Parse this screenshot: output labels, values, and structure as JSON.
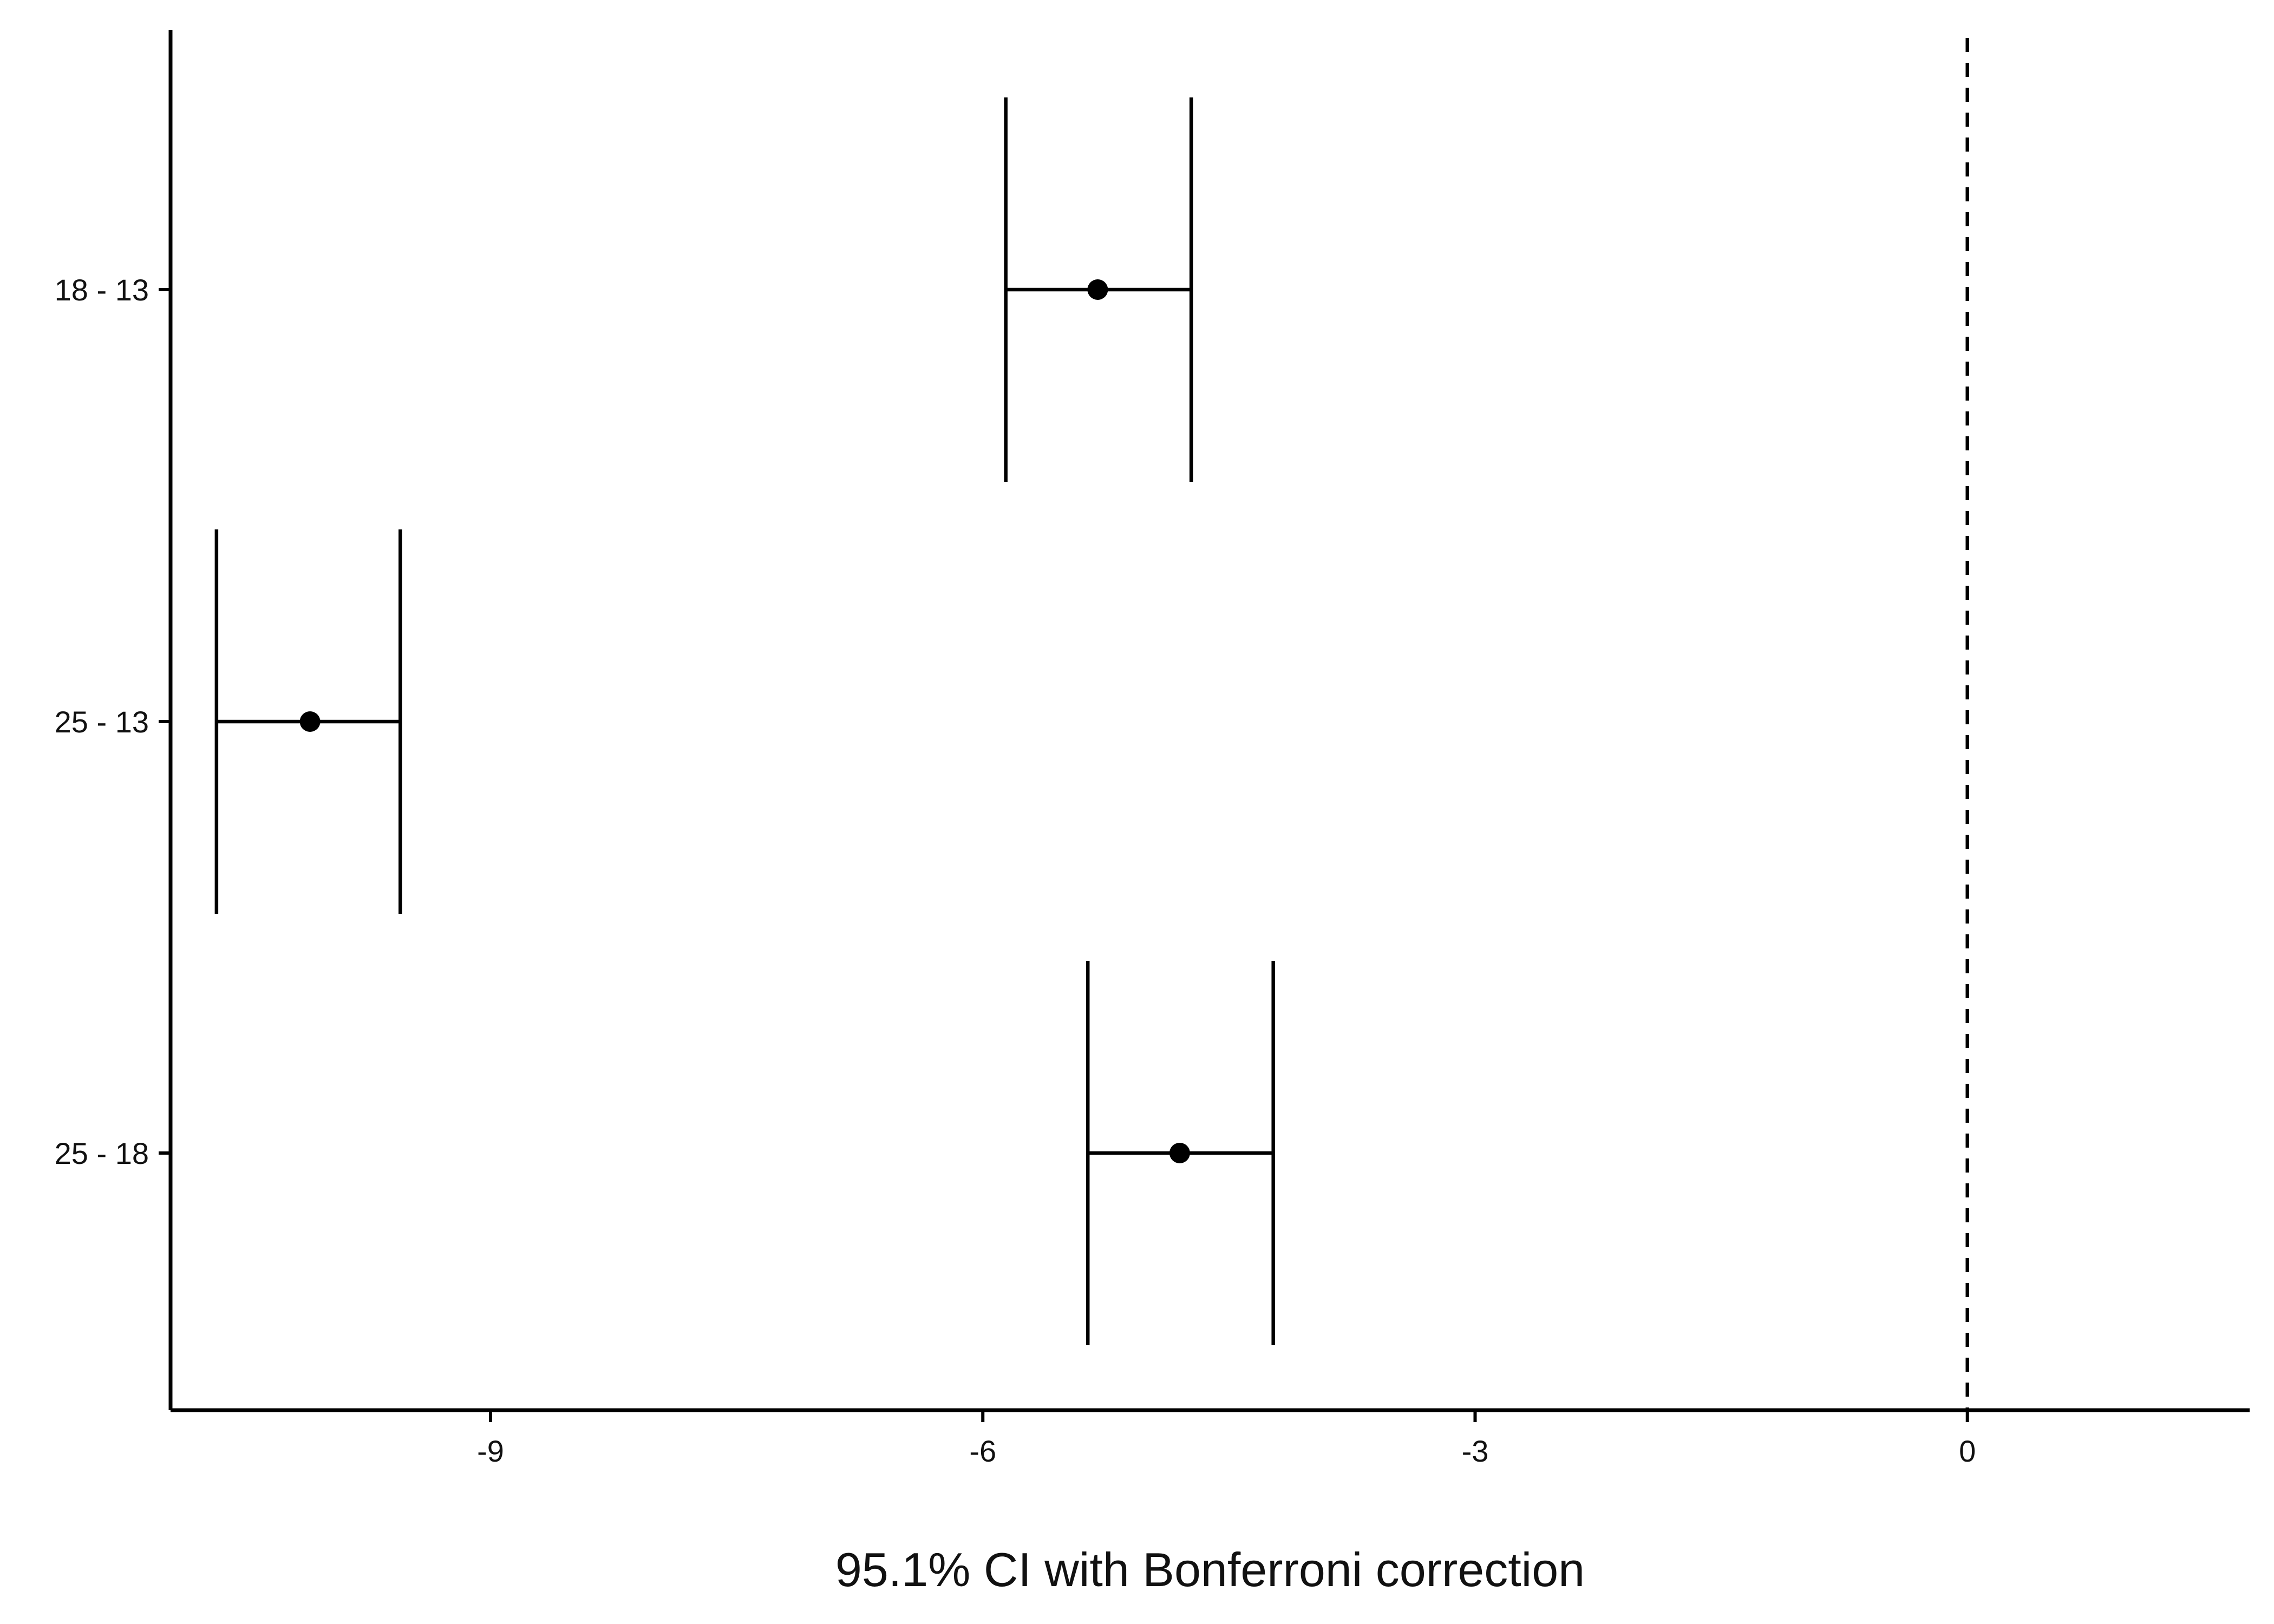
{
  "chart_data": {
    "type": "errorbar",
    "orientation": "horizontal",
    "title": "",
    "xlabel": "95.1% CI with Bonferroni correction",
    "ylabel": "",
    "xlim": [
      -10.95,
      1.72
    ],
    "x_ticks": [
      -9,
      -6,
      -3,
      0
    ],
    "x_tick_labels": [
      "-9",
      "-6",
      "-3",
      "0"
    ],
    "reference_line": {
      "x": 0,
      "style": "dashed"
    },
    "categories": [
      "18 - 13",
      "25 - 13",
      "25 - 18"
    ],
    "estimates": [
      -5.3,
      -10.1,
      -4.8
    ],
    "lower": [
      -5.86,
      -10.67,
      -5.36
    ],
    "upper": [
      -4.73,
      -9.55,
      -4.23
    ],
    "grid": false,
    "legend": "none",
    "color": "#000000"
  }
}
